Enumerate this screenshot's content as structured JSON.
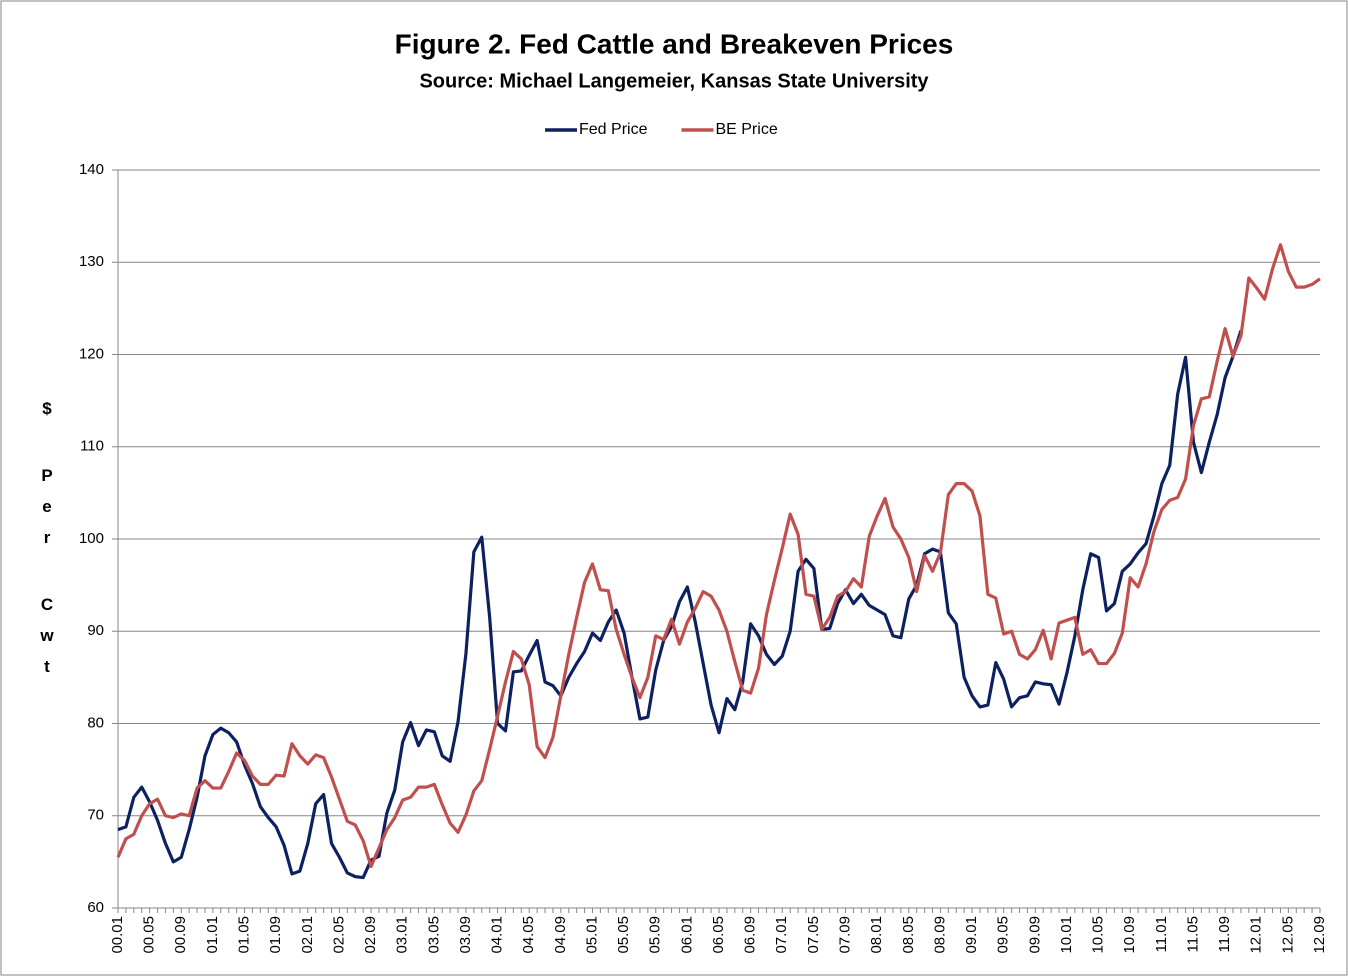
{
  "chart_data": {
    "type": "line",
    "title": "Figure 2.  Fed Cattle and Breakeven Prices",
    "subtitle": "Source:  Michael Langemeier, Kansas State University",
    "y_label": "$ Per Cwt",
    "categories": [
      "00.01",
      null,
      null,
      null,
      "00.05",
      null,
      null,
      null,
      "00.09",
      null,
      null,
      null,
      "01.01",
      null,
      null,
      null,
      "01.05",
      null,
      null,
      null,
      "01.09",
      null,
      null,
      null,
      "02.01",
      null,
      null,
      null,
      "02.05",
      null,
      null,
      null,
      "02.09",
      null,
      null,
      null,
      "03.01",
      null,
      null,
      null,
      "03.05",
      null,
      null,
      null,
      "03.09",
      null,
      null,
      null,
      "04.01",
      null,
      null,
      null,
      "04.05",
      null,
      null,
      null,
      "04.09",
      null,
      null,
      null,
      "05.01",
      null,
      null,
      null,
      "05.05",
      null,
      null,
      null,
      "05.09",
      null,
      null,
      null,
      "06.01",
      null,
      null,
      null,
      "06.05",
      null,
      null,
      null,
      "06.09",
      null,
      null,
      null,
      "07.01",
      null,
      null,
      null,
      "07.05",
      null,
      null,
      null,
      "07.09",
      null,
      null,
      null,
      "08.01",
      null,
      null,
      null,
      "08.05",
      null,
      null,
      null,
      "08.09",
      null,
      null,
      null,
      "09.01",
      null,
      null,
      null,
      "09.05",
      null,
      null,
      null,
      "09.09",
      null,
      null,
      null,
      "10.01",
      null,
      null,
      null,
      "10.05",
      null,
      null,
      null,
      "10.09",
      null,
      null,
      null,
      "11.01",
      null,
      null,
      null,
      "11.05",
      null,
      null,
      null,
      "11.09",
      null,
      null,
      null,
      "12.01",
      null,
      null,
      null,
      "12.05",
      null,
      null,
      null,
      "12.09"
    ],
    "series": [
      {
        "name": "Fed Price",
        "color": "#0d2161",
        "values": [
          68.5,
          68.8,
          72,
          73.1,
          71.5,
          69.5,
          67,
          65,
          65.5,
          68.5,
          72,
          76.5,
          78.8,
          79.5,
          79,
          78,
          75.5,
          73.5,
          71,
          69.8,
          68.8,
          66.8,
          63.7,
          64,
          67,
          71.3,
          72.3,
          67,
          65.5,
          63.8,
          63.4,
          63.3,
          65.2,
          65.6,
          70.3,
          72.8,
          78,
          80.1,
          77.6,
          79.3,
          79.1,
          76.5,
          75.9,
          80.2,
          87.6,
          98.6,
          100.2,
          91.5,
          80,
          79.2,
          85.6,
          85.7,
          87.4,
          89,
          84.5,
          84.1,
          83,
          85,
          86.5,
          87.8,
          89.8,
          89,
          91,
          92.3,
          89.8,
          85,
          80.5,
          80.7,
          85.8,
          89,
          90.5,
          93.2,
          94.8,
          91,
          86.5,
          82,
          79,
          82.7,
          81.5,
          84.5,
          90.8,
          89.5,
          87.5,
          86.4,
          87.3,
          90,
          96.5,
          97.8,
          96.8,
          90.2,
          90.3,
          93,
          94.5,
          93,
          94,
          92.8,
          92.3,
          91.8,
          89.5,
          89.3,
          93.5,
          95,
          98.4,
          98.9,
          98.6,
          92,
          90.8,
          85,
          83,
          81.8,
          82,
          86.6,
          84.8,
          81.8,
          82.8,
          83,
          84.5,
          84.3,
          84.2,
          82.1,
          85.5,
          89.5,
          94.5,
          98.4,
          98,
          92.2,
          93,
          96.5,
          97.3,
          98.5,
          99.5,
          102.5,
          106,
          108,
          115.7,
          119.7,
          110.5,
          107.2,
          110.5,
          113.5,
          117.5,
          119.8,
          122.6,
          null,
          null,
          null,
          null,
          null,
          null,
          null,
          null,
          null,
          null
        ]
      },
      {
        "name": "BE Price",
        "color": "#c0504d",
        "values": [
          65.5,
          67.5,
          68,
          70,
          71.3,
          71.8,
          70,
          69.8,
          70.2,
          70,
          73,
          73.8,
          73,
          73,
          74.8,
          76.8,
          76,
          74.3,
          73.4,
          73.4,
          74.4,
          74.3,
          77.8,
          76.5,
          75.6,
          76.6,
          76.3,
          74.2,
          71.8,
          69.4,
          69,
          67.3,
          64.5,
          66.5,
          68.5,
          69.8,
          71.7,
          72,
          73.1,
          73.1,
          73.4,
          71.2,
          69.2,
          68.2,
          70.1,
          72.7,
          73.8,
          77.2,
          80.8,
          84.5,
          87.8,
          87,
          84.2,
          77.5,
          76.3,
          78.5,
          83,
          87.5,
          91.5,
          95.3,
          97.3,
          94.5,
          94.4,
          90.2,
          87.5,
          85,
          82.8,
          85,
          89.5,
          89.1,
          91.3,
          88.6,
          91,
          92.5,
          94.3,
          93.8,
          92.3,
          90,
          86.7,
          83.6,
          83.3,
          86,
          91.8,
          95.5,
          99,
          102.7,
          100.5,
          94,
          93.8,
          90.2,
          91.5,
          93.8,
          94.3,
          95.7,
          94.8,
          100.3,
          102.5,
          104.4,
          101.3,
          100,
          98,
          94.3,
          98.2,
          96.5,
          98.5,
          104.8,
          106,
          106,
          105.2,
          102.5,
          94,
          93.6,
          89.7,
          90,
          87.5,
          87,
          88,
          90.1,
          87,
          90.9,
          91.2,
          91.5,
          87.5,
          88,
          86.5,
          86.5,
          87.6,
          89.8,
          95.8,
          94.8,
          97.3,
          100.8,
          103.2,
          104.2,
          104.5,
          106.5,
          112.3,
          115.2,
          115.4,
          119.3,
          122.8,
          119.8,
          122,
          128.3,
          127.2,
          126,
          129.3,
          131.9,
          129,
          127.3,
          127.3,
          127.6,
          128.2
        ]
      }
    ],
    "ylim": [
      60,
      140
    ],
    "yticks": [
      60,
      70,
      80,
      90,
      100,
      110,
      120,
      130,
      140
    ],
    "grid": true,
    "legend": "top"
  }
}
